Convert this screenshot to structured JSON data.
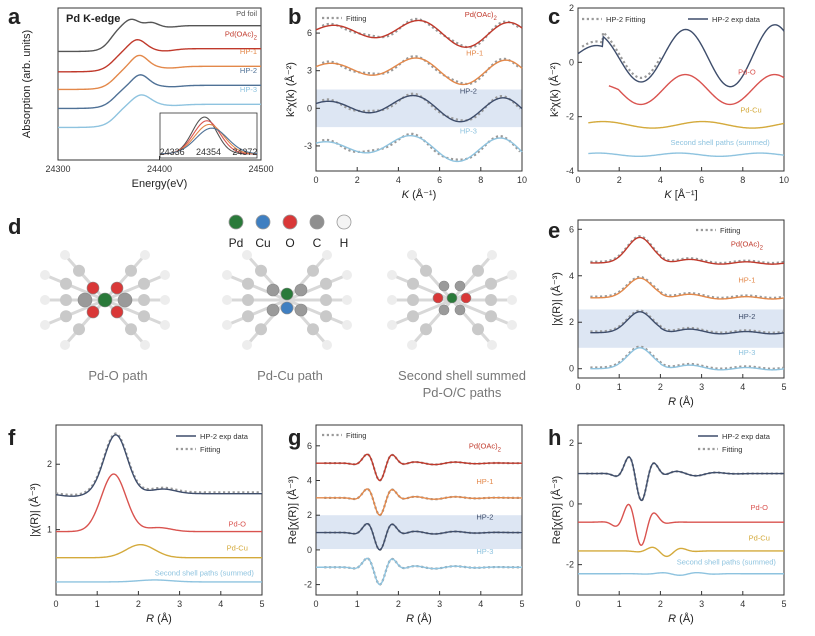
{
  "colors": {
    "dark": "#3e4d6b",
    "red": "#d9534f",
    "orange": "#e3884a",
    "blue": "#4f7196",
    "light": "#8ec3df",
    "gray": "#666666",
    "foil": "#555555",
    "cu": "#d4aa3c",
    "fit": "#9a9a9a",
    "band": "#dde6f3"
  },
  "panel_labels": {
    "a": "a",
    "b": "b",
    "c": "c",
    "d": "d",
    "e": "e",
    "f": "f",
    "g": "g",
    "h": "h"
  },
  "molecule": {
    "legend": [
      {
        "label": "Pd",
        "color": "#2a7a3a"
      },
      {
        "label": "Cu",
        "color": "#3f7fc1"
      },
      {
        "label": "O",
        "color": "#d93838"
      },
      {
        "label": "C",
        "color": "#8f8f8f"
      },
      {
        "label": "H",
        "color": "#f4f4f4"
      }
    ],
    "captions": [
      "Pd-O path",
      "Pd-Cu path",
      "Second shell summed",
      "Pd-O/C paths"
    ]
  },
  "chart_data": [
    {
      "id": "a",
      "type": "line",
      "title": "Pd K-edge",
      "xlabel": "Energy(eV)",
      "ylabel": "Absorption (arb. units)",
      "xlim": [
        24300,
        24500
      ],
      "xticks": [
        24300,
        24400,
        24500
      ],
      "series": [
        {
          "name": "Pd foil",
          "color": "#555555",
          "offset": 4.0
        },
        {
          "name": "Pd(OAc)2",
          "color": "#c0392b",
          "offset": 3.25
        },
        {
          "name": "HP-1",
          "color": "#e3884a",
          "offset": 2.6
        },
        {
          "name": "HP-2",
          "color": "#4f7196",
          "offset": 1.9
        },
        {
          "name": "HP-3",
          "color": "#8ec3df",
          "offset": 1.2
        }
      ],
      "inset": {
        "xticks": [
          24336,
          24354,
          24372
        ]
      }
    },
    {
      "id": "b",
      "type": "line",
      "xlabel": "K (Å⁻¹)",
      "ylabel": "k²χ(k) (Å⁻²)",
      "xlim": [
        0,
        10
      ],
      "ylim": [
        -5,
        8
      ],
      "xticks": [
        0,
        2,
        4,
        6,
        8,
        10
      ],
      "yticks": [
        -3,
        0,
        3,
        6
      ],
      "fit_legend": "Fitting",
      "series": [
        {
          "name": "Pd(OAc)2",
          "color": "#c0392b",
          "offset": 6
        },
        {
          "name": "HP-1",
          "color": "#e3884a",
          "offset": 3
        },
        {
          "name": "HP-2",
          "color": "#3e4d6b",
          "offset": 0
        },
        {
          "name": "HP-3",
          "color": "#8ec3df",
          "offset": -3.2
        }
      ]
    },
    {
      "id": "c",
      "type": "line",
      "xlabel": "K [Å⁻¹]",
      "ylabel": "k²χ(k) (Å⁻²)",
      "xlim": [
        0,
        10
      ],
      "ylim": [
        -4,
        2
      ],
      "xticks": [
        0,
        2,
        4,
        6,
        8,
        10
      ],
      "yticks": [
        -4,
        -2,
        0,
        2
      ],
      "legend": [
        "HP-2 Fitting",
        "HP-2 exp data"
      ],
      "series": [
        {
          "name": "HP-2",
          "color": "#3e4d6b",
          "offset": 0
        },
        {
          "name": "Pd-O",
          "color": "#d9534f",
          "offset": -1.0
        },
        {
          "name": "Pd-Cu",
          "color": "#d4aa3c",
          "offset": -2.3
        },
        {
          "name": "Second shell paths (summed)",
          "color": "#8ec3df",
          "offset": -3.4
        }
      ]
    },
    {
      "id": "e",
      "type": "line",
      "xlabel": "R (Å)",
      "ylabel": "|χ(R)| (Å⁻³)",
      "xlim": [
        0,
        5
      ],
      "ylim": [
        -0.4,
        6.4
      ],
      "xticks": [
        0,
        1,
        2,
        3,
        4,
        5
      ],
      "yticks": [
        0,
        2,
        4,
        6
      ],
      "fit_legend": "Fitting",
      "series": [
        {
          "name": "Pd(OAc)2",
          "color": "#c0392b",
          "offset": 4.55
        },
        {
          "name": "HP-1",
          "color": "#e3884a",
          "offset": 3.05
        },
        {
          "name": "HP-2",
          "color": "#3e4d6b",
          "offset": 1.55
        },
        {
          "name": "HP-3",
          "color": "#8ec3df",
          "offset": 0.0
        }
      ]
    },
    {
      "id": "f",
      "type": "line",
      "xlabel": "R (Å)",
      "ylabel": "|χ(R)| (Å⁻³)",
      "xlim": [
        0,
        5
      ],
      "ylim": [
        0,
        2.6
      ],
      "xticks": [
        0,
        1,
        2,
        3,
        4,
        5
      ],
      "yticks": [
        1,
        2
      ],
      "legend": [
        "HP-2 exp data",
        "Fitting"
      ],
      "series": [
        {
          "name": "HP-2",
          "color": "#3e4d6b",
          "offset": 1.55
        },
        {
          "name": "Pd-O",
          "color": "#d9534f",
          "offset": 0.97
        },
        {
          "name": "Pd-Cu",
          "color": "#d4aa3c",
          "offset": 0.57
        },
        {
          "name": "Second shell paths (summed)",
          "color": "#8ec3df",
          "offset": 0.2
        }
      ]
    },
    {
      "id": "g",
      "type": "line",
      "xlabel": "R (Å)",
      "ylabel": "Re[χ(R)] (Å⁻³)",
      "xlim": [
        0,
        5
      ],
      "ylim": [
        -2.6,
        7.2
      ],
      "xticks": [
        0,
        1,
        2,
        3,
        4,
        5
      ],
      "yticks": [
        -2,
        0,
        2,
        4,
        6
      ],
      "fit_legend": "Fitting",
      "series": [
        {
          "name": "Pd(OAc)2",
          "color": "#c0392b",
          "offset": 5
        },
        {
          "name": "HP-1",
          "color": "#e3884a",
          "offset": 3
        },
        {
          "name": "HP-2",
          "color": "#3e4d6b",
          "offset": 1
        },
        {
          "name": "HP-3",
          "color": "#8ec3df",
          "offset": -1
        }
      ]
    },
    {
      "id": "h",
      "type": "line",
      "xlabel": "R (Å)",
      "ylabel": "Re[χ(R)] (Å⁻³)",
      "xlim": [
        0,
        5
      ],
      "ylim": [
        -3,
        2.6
      ],
      "xticks": [
        0,
        1,
        2,
        3,
        4,
        5
      ],
      "yticks": [
        -2,
        0,
        2
      ],
      "legend": [
        "HP-2 exp data",
        "Fitting"
      ],
      "series": [
        {
          "name": "HP-2",
          "color": "#3e4d6b",
          "offset": 1
        },
        {
          "name": "Pd-O",
          "color": "#d9534f",
          "offset": -0.6
        },
        {
          "name": "Pd-Cu",
          "color": "#d4aa3c",
          "offset": -1.55
        },
        {
          "name": "Second shell paths (summed)",
          "color": "#8ec3df",
          "offset": -2.3
        }
      ]
    }
  ]
}
